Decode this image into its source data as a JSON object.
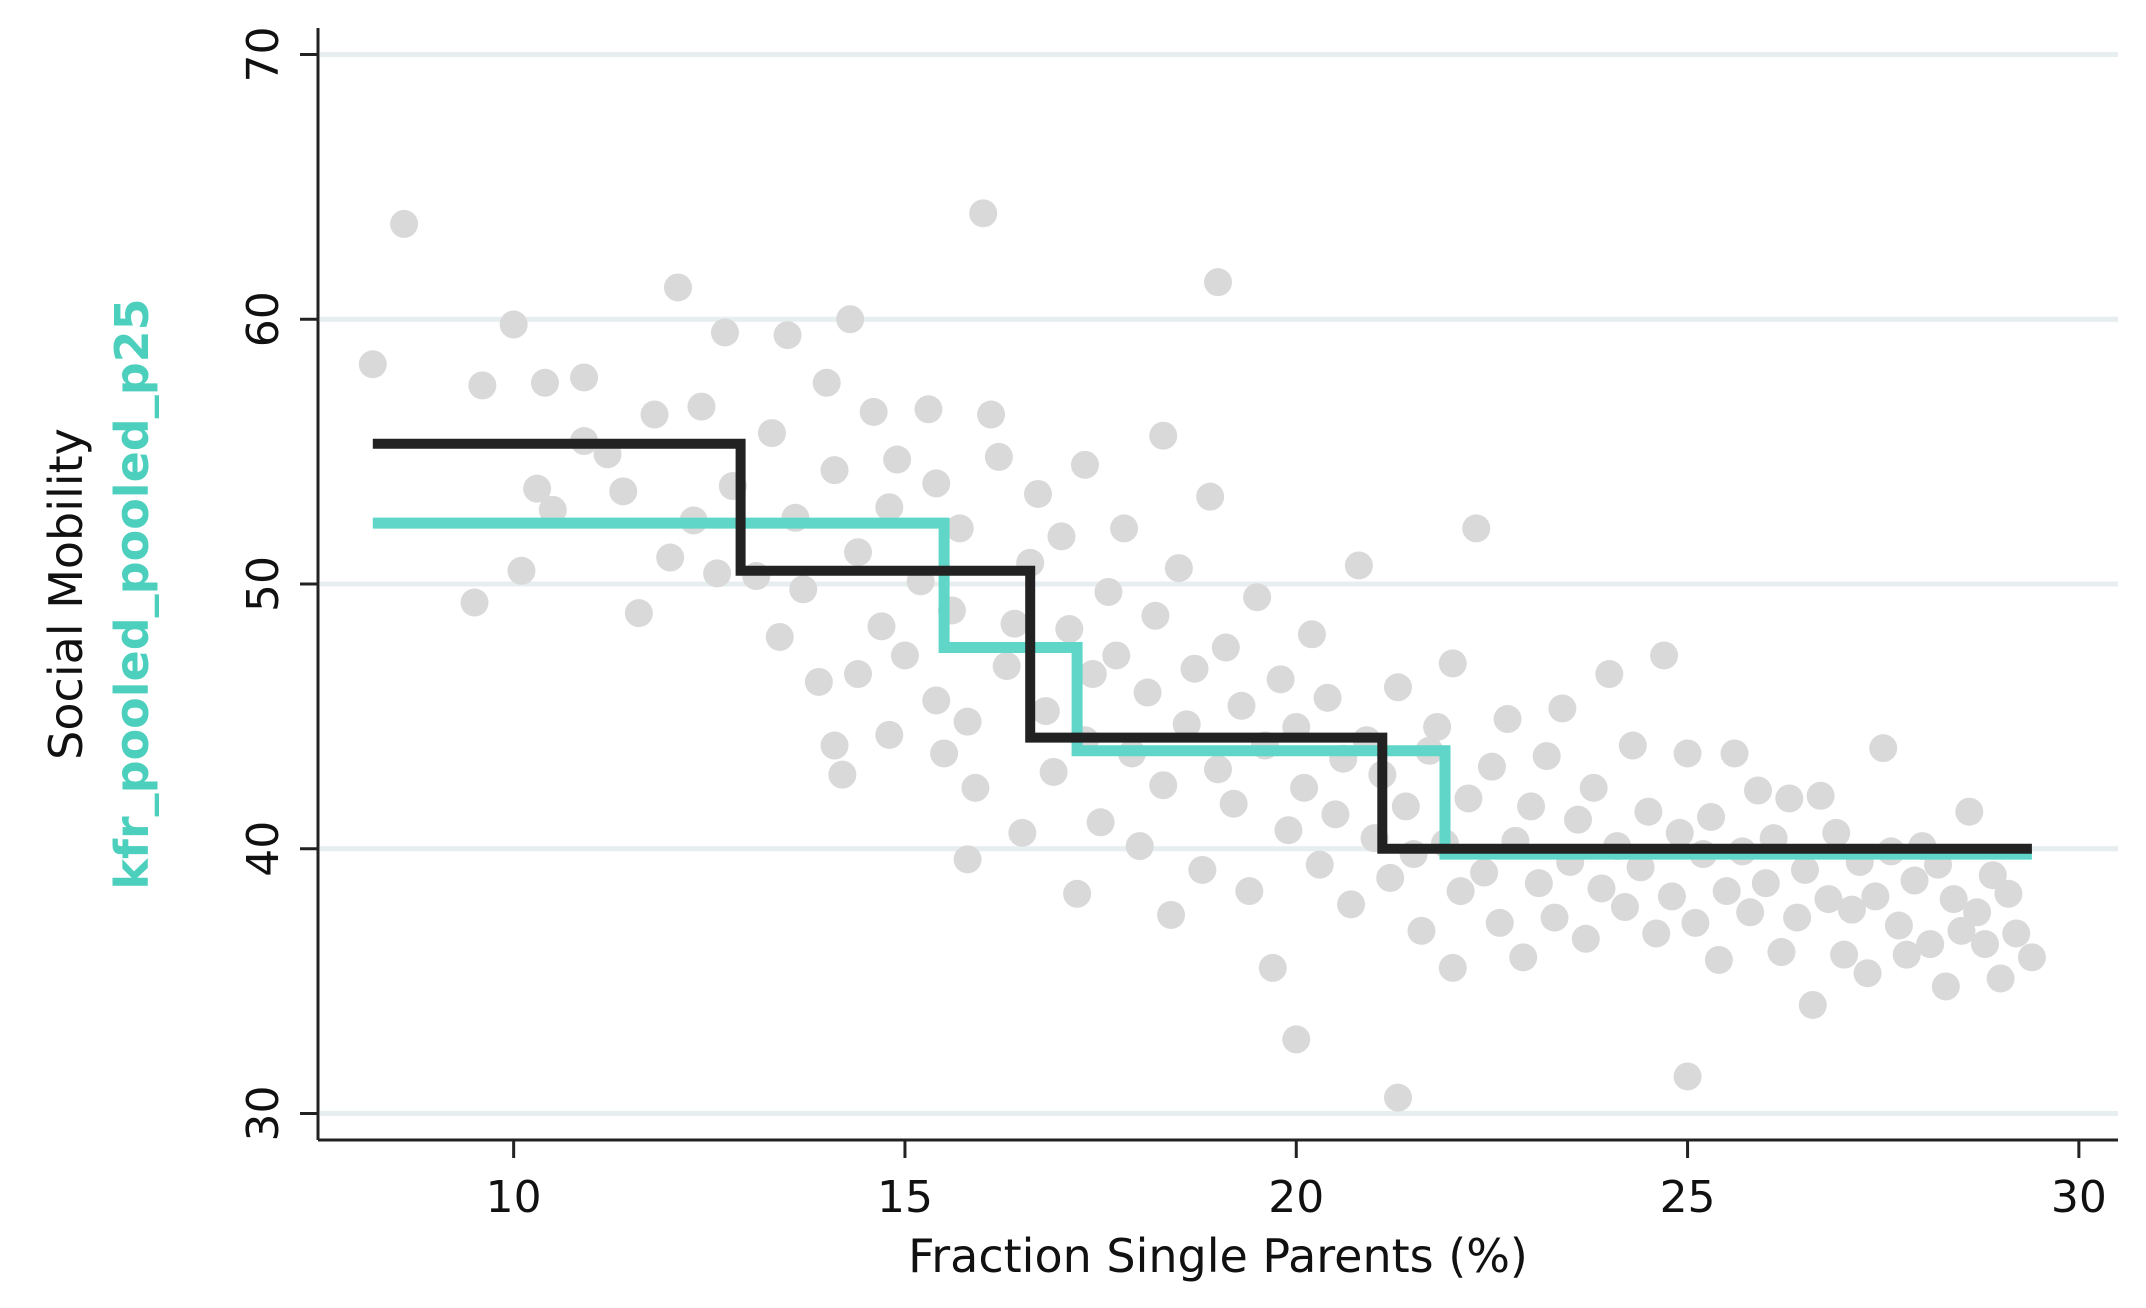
{
  "chart_data": {
    "type": "scatter",
    "xlabel": "Fraction Single Parents (%)",
    "ylabel": "Social Mobility",
    "ylabel_series": "kfr_pooled_pooled_p25",
    "xlim": [
      7.5,
      30.5
    ],
    "ylim": [
      29,
      71
    ],
    "x_ticks": [
      "10",
      "15",
      "20",
      "25",
      "30"
    ],
    "y_ticks": [
      "30",
      "40",
      "50",
      "60",
      "70"
    ],
    "grid": "horizontal",
    "colors": {
      "scatter": "#d9d9d9",
      "series_teal": "#5fd6c8",
      "series_black": "#222222",
      "ylabel_series": "#4ccfbd",
      "gridline": "#e6eef0",
      "axis": "#222222"
    },
    "scatter_points": [
      [
        8.2,
        58.3
      ],
      [
        8.6,
        63.6
      ],
      [
        9.5,
        49.3
      ],
      [
        9.6,
        57.5
      ],
      [
        10.0,
        59.8
      ],
      [
        10.1,
        50.5
      ],
      [
        10.3,
        53.6
      ],
      [
        10.4,
        57.6
      ],
      [
        10.5,
        52.8
      ],
      [
        10.9,
        57.8
      ],
      [
        10.9,
        55.4
      ],
      [
        11.2,
        54.9
      ],
      [
        11.4,
        53.5
      ],
      [
        11.6,
        48.9
      ],
      [
        11.8,
        56.4
      ],
      [
        12.0,
        51.0
      ],
      [
        12.1,
        61.2
      ],
      [
        12.3,
        52.4
      ],
      [
        12.4,
        56.7
      ],
      [
        12.6,
        50.4
      ],
      [
        12.7,
        59.5
      ],
      [
        12.8,
        53.7
      ],
      [
        13.1,
        50.3
      ],
      [
        13.3,
        55.7
      ],
      [
        13.4,
        48.0
      ],
      [
        13.5,
        59.4
      ],
      [
        13.6,
        52.5
      ],
      [
        13.7,
        49.8
      ],
      [
        13.9,
        46.3
      ],
      [
        14.0,
        57.6
      ],
      [
        14.1,
        54.3
      ],
      [
        14.1,
        43.9
      ],
      [
        14.2,
        42.8
      ],
      [
        14.3,
        60.0
      ],
      [
        14.4,
        51.2
      ],
      [
        14.4,
        46.6
      ],
      [
        14.6,
        56.5
      ],
      [
        14.7,
        48.4
      ],
      [
        14.8,
        52.9
      ],
      [
        14.8,
        44.3
      ],
      [
        14.9,
        54.7
      ],
      [
        15.0,
        47.3
      ],
      [
        15.2,
        50.1
      ],
      [
        15.3,
        56.6
      ],
      [
        15.4,
        45.6
      ],
      [
        15.4,
        53.8
      ],
      [
        15.5,
        43.6
      ],
      [
        15.6,
        49.0
      ],
      [
        15.7,
        52.1
      ],
      [
        15.8,
        44.8
      ],
      [
        15.8,
        39.6
      ],
      [
        15.9,
        42.3
      ],
      [
        16.0,
        64.0
      ],
      [
        16.1,
        56.4
      ],
      [
        16.2,
        54.8
      ],
      [
        16.3,
        46.9
      ],
      [
        16.4,
        48.5
      ],
      [
        16.5,
        40.6
      ],
      [
        16.6,
        50.8
      ],
      [
        16.7,
        53.4
      ],
      [
        16.8,
        45.2
      ],
      [
        16.9,
        42.9
      ],
      [
        17.0,
        51.8
      ],
      [
        17.1,
        48.3
      ],
      [
        17.2,
        38.3
      ],
      [
        17.3,
        54.5
      ],
      [
        17.3,
        44.1
      ],
      [
        17.4,
        46.6
      ],
      [
        17.5,
        41.0
      ],
      [
        17.6,
        49.7
      ],
      [
        17.7,
        47.3
      ],
      [
        17.8,
        52.1
      ],
      [
        17.9,
        43.6
      ],
      [
        18.0,
        40.1
      ],
      [
        18.1,
        45.9
      ],
      [
        18.2,
        48.8
      ],
      [
        18.3,
        42.4
      ],
      [
        18.3,
        55.6
      ],
      [
        18.4,
        37.5
      ],
      [
        18.5,
        50.6
      ],
      [
        18.6,
        44.7
      ],
      [
        18.7,
        46.8
      ],
      [
        18.8,
        39.2
      ],
      [
        18.9,
        53.3
      ],
      [
        19.0,
        43.0
      ],
      [
        19.0,
        61.4
      ],
      [
        19.1,
        47.6
      ],
      [
        19.2,
        41.7
      ],
      [
        19.3,
        45.4
      ],
      [
        19.4,
        38.4
      ],
      [
        19.5,
        49.5
      ],
      [
        19.6,
        43.9
      ],
      [
        19.7,
        35.5
      ],
      [
        19.8,
        46.4
      ],
      [
        19.9,
        40.7
      ],
      [
        20.0,
        44.6
      ],
      [
        20.0,
        32.8
      ],
      [
        20.1,
        42.3
      ],
      [
        20.2,
        48.1
      ],
      [
        20.3,
        39.4
      ],
      [
        20.4,
        45.7
      ],
      [
        20.5,
        41.3
      ],
      [
        20.6,
        43.4
      ],
      [
        20.7,
        37.9
      ],
      [
        20.8,
        50.7
      ],
      [
        20.9,
        44.1
      ],
      [
        21.0,
        40.4
      ],
      [
        21.1,
        42.8
      ],
      [
        21.2,
        38.9
      ],
      [
        21.3,
        46.1
      ],
      [
        21.3,
        30.6
      ],
      [
        21.4,
        41.6
      ],
      [
        21.5,
        39.8
      ],
      [
        21.6,
        36.9
      ],
      [
        21.7,
        43.7
      ],
      [
        21.8,
        44.6
      ],
      [
        21.9,
        40.2
      ],
      [
        22.0,
        35.5
      ],
      [
        22.0,
        47.0
      ],
      [
        22.1,
        38.4
      ],
      [
        22.2,
        41.9
      ],
      [
        22.3,
        52.1
      ],
      [
        22.4,
        39.1
      ],
      [
        22.5,
        43.1
      ],
      [
        22.6,
        37.2
      ],
      [
        22.7,
        44.9
      ],
      [
        22.8,
        40.3
      ],
      [
        22.9,
        35.9
      ],
      [
        23.0,
        41.6
      ],
      [
        23.1,
        38.7
      ],
      [
        23.2,
        43.5
      ],
      [
        23.3,
        37.4
      ],
      [
        23.4,
        45.3
      ],
      [
        23.5,
        39.5
      ],
      [
        23.6,
        41.1
      ],
      [
        23.7,
        36.6
      ],
      [
        23.8,
        42.3
      ],
      [
        23.9,
        38.5
      ],
      [
        24.0,
        46.6
      ],
      [
        24.1,
        40.1
      ],
      [
        24.2,
        37.8
      ],
      [
        24.3,
        43.9
      ],
      [
        24.4,
        39.3
      ],
      [
        24.5,
        41.4
      ],
      [
        24.6,
        36.8
      ],
      [
        24.7,
        47.3
      ],
      [
        24.8,
        38.2
      ],
      [
        24.9,
        40.6
      ],
      [
        25.0,
        43.6
      ],
      [
        25.0,
        31.4
      ],
      [
        25.1,
        37.2
      ],
      [
        25.2,
        39.8
      ],
      [
        25.3,
        41.2
      ],
      [
        25.4,
        35.8
      ],
      [
        25.5,
        38.4
      ],
      [
        25.6,
        43.6
      ],
      [
        25.7,
        39.9
      ],
      [
        25.8,
        37.6
      ],
      [
        25.9,
        42.2
      ],
      [
        26.0,
        38.7
      ],
      [
        26.1,
        40.4
      ],
      [
        26.2,
        36.1
      ],
      [
        26.3,
        41.9
      ],
      [
        26.4,
        37.4
      ],
      [
        26.5,
        39.2
      ],
      [
        26.6,
        34.1
      ],
      [
        26.7,
        42.0
      ],
      [
        26.8,
        38.1
      ],
      [
        26.9,
        40.6
      ],
      [
        27.0,
        36.0
      ],
      [
        27.1,
        37.7
      ],
      [
        27.2,
        39.5
      ],
      [
        27.3,
        35.3
      ],
      [
        27.4,
        38.2
      ],
      [
        27.5,
        43.8
      ],
      [
        27.6,
        39.9
      ],
      [
        27.7,
        37.1
      ],
      [
        27.8,
        36.0
      ],
      [
        27.9,
        38.8
      ],
      [
        28.0,
        40.1
      ],
      [
        28.1,
        36.4
      ],
      [
        28.2,
        39.4
      ],
      [
        28.3,
        34.8
      ],
      [
        28.4,
        38.1
      ],
      [
        28.5,
        36.9
      ],
      [
        28.6,
        41.4
      ],
      [
        28.7,
        37.6
      ],
      [
        28.8,
        36.4
      ],
      [
        28.9,
        39.0
      ],
      [
        29.0,
        35.1
      ],
      [
        29.1,
        38.3
      ],
      [
        29.2,
        36.8
      ],
      [
        29.4,
        35.9
      ]
    ],
    "series": [
      {
        "color": "#5fd6c8",
        "step_x": [
          8.2,
          15.5,
          15.5,
          17.2,
          17.2,
          21.9,
          21.9,
          29.4
        ],
        "step_y": [
          52.3,
          52.3,
          47.6,
          47.6,
          43.7,
          43.7,
          39.8,
          39.8
        ]
      },
      {
        "color": "#222222",
        "step_x": [
          8.2,
          12.9,
          12.9,
          16.6,
          16.6,
          21.1,
          21.1,
          29.4
        ],
        "step_y": [
          55.3,
          55.3,
          50.5,
          50.5,
          44.2,
          44.2,
          40.0,
          40.0
        ]
      }
    ]
  }
}
